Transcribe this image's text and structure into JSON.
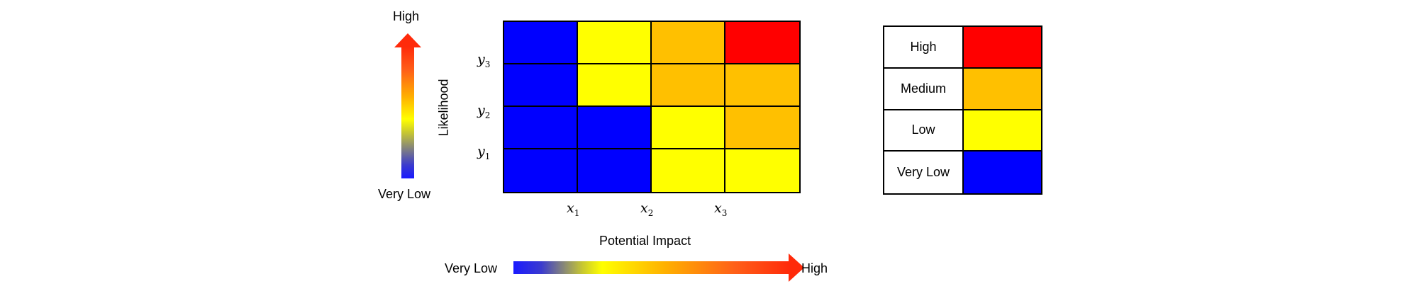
{
  "likelihood_axis": {
    "label": "Likelihood",
    "high": "High",
    "low": "Very Low"
  },
  "impact_axis": {
    "label": "Potential Impact",
    "high": "High",
    "low": "Very Low"
  },
  "x_ticks": [
    {
      "base": "x",
      "sub": "1"
    },
    {
      "base": "x",
      "sub": "2"
    },
    {
      "base": "x",
      "sub": "3"
    }
  ],
  "y_ticks": [
    {
      "base": "y",
      "sub": "3"
    },
    {
      "base": "y",
      "sub": "2"
    },
    {
      "base": "y",
      "sub": "1"
    }
  ],
  "levels": {
    "High": "#ff0000",
    "Medium": "#ffc000",
    "Low": "#ffff00",
    "Very Low": "#0000ff"
  },
  "matrix_rows_top_to_bottom": [
    [
      "Very Low",
      "Low",
      "Medium",
      "High"
    ],
    [
      "Very Low",
      "Low",
      "Medium",
      "Medium"
    ],
    [
      "Very Low",
      "Very Low",
      "Low",
      "Medium"
    ],
    [
      "Very Low",
      "Very Low",
      "Low",
      "Low"
    ]
  ],
  "legend": [
    {
      "label": "High",
      "color": "#ff0000"
    },
    {
      "label": "Medium",
      "color": "#ffc000"
    },
    {
      "label": "Low",
      "color": "#ffff00"
    },
    {
      "label": "Very Low",
      "color": "#0000ff"
    }
  ]
}
